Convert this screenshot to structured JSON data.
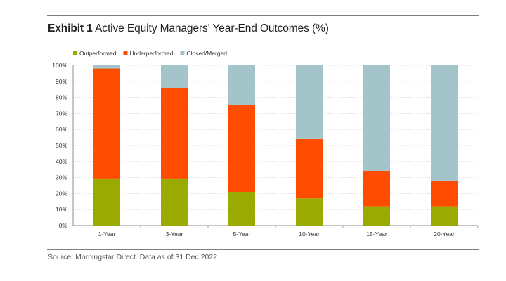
{
  "header": {
    "exhibit": "Exhibit 1",
    "title_text": "Active Equity Managers' Year-End Outcomes (%)"
  },
  "footer": {
    "source": "Source: Morningstar Direct. Data as of 31 Dec 2022."
  },
  "chart_data": {
    "type": "bar",
    "stacked": true,
    "title": "Exhibit 1 Active Equity Managers' Year-End Outcomes (%)",
    "categories": [
      "1-Year",
      "3-Year",
      "5-Year",
      "10-Year",
      "15-Year",
      "20-Year"
    ],
    "series": [
      {
        "name": "Outperformed",
        "color": "#9aaa00",
        "values": [
          29,
          29,
          21,
          17,
          12,
          12
        ]
      },
      {
        "name": "Underperformed",
        "color": "#fe4d00",
        "values": [
          69,
          57,
          54,
          37,
          22,
          16
        ]
      },
      {
        "name": "Closed/Merged",
        "color": "#a3c4c8",
        "values": [
          2,
          14,
          25,
          46,
          66,
          72
        ]
      }
    ],
    "ylim": [
      0,
      100
    ],
    "yticks": [
      "0%",
      "10%",
      "20%",
      "30%",
      "40%",
      "50%",
      "60%",
      "70%",
      "80%",
      "90%",
      "100%"
    ],
    "grid": true,
    "legend_position": "top-left"
  }
}
